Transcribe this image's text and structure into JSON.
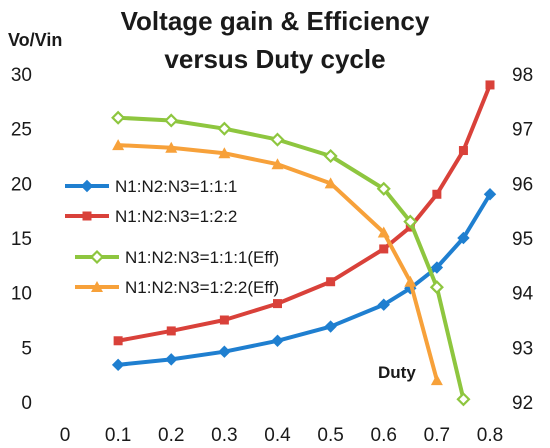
{
  "chart_data": {
    "type": "line",
    "title_lines": [
      "Voltage gain & Efficiency",
      "versus Duty cycle"
    ],
    "ylabel_left": "Vo/Vin",
    "annotation": "Duty",
    "x_ticks": [
      "0",
      "0.1",
      "0.2",
      "0.3",
      "0.4",
      "0.5",
      "0.6",
      "0.7",
      "0.8"
    ],
    "y_left_ticks": [
      "0",
      "5",
      "10",
      "15",
      "20",
      "25",
      "30"
    ],
    "y_right_ticks": [
      "92",
      "93",
      "94",
      "95",
      "96",
      "97",
      "98"
    ],
    "xlim": [
      0,
      0.8
    ],
    "ylim_left": [
      0,
      30
    ],
    "ylim_right": [
      92,
      98
    ],
    "legend_position": "left-center",
    "series": [
      {
        "name": "N1:N2:N3=1:1:1",
        "axis": "left",
        "color": "#1f7fd0",
        "marker": "diamond",
        "x": [
          0.1,
          0.2,
          0.3,
          0.4,
          0.5,
          0.6,
          0.65,
          0.7,
          0.75,
          0.8
        ],
        "y": [
          3.4,
          3.9,
          4.6,
          5.6,
          6.9,
          8.9,
          10.4,
          12.3,
          15.0,
          19.0
        ]
      },
      {
        "name": "N1:N2:N3=1:2:2",
        "axis": "left",
        "color": "#d9413a",
        "marker": "square",
        "x": [
          0.1,
          0.2,
          0.3,
          0.4,
          0.5,
          0.6,
          0.65,
          0.7,
          0.75,
          0.8
        ],
        "y": [
          5.6,
          6.5,
          7.5,
          9.0,
          11.0,
          14.0,
          16.0,
          19.0,
          23.0,
          29.0
        ]
      },
      {
        "name": "N1:N2:N3=1:1:1(Eff)",
        "axis": "right",
        "color": "#8ec63f",
        "marker": "diamond-open",
        "x": [
          0.1,
          0.2,
          0.3,
          0.4,
          0.5,
          0.6,
          0.65,
          0.7,
          0.75
        ],
        "y": [
          97.2,
          97.15,
          97.0,
          96.8,
          96.5,
          95.9,
          95.3,
          94.1,
          92.05
        ]
      },
      {
        "name": "N1:N2:N3=1:2:2(Eff)",
        "axis": "right",
        "color": "#f7a13a",
        "marker": "triangle",
        "x": [
          0.1,
          0.2,
          0.3,
          0.4,
          0.5,
          0.6,
          0.65,
          0.7
        ],
        "y": [
          96.7,
          96.65,
          96.55,
          96.35,
          96.0,
          95.1,
          94.2,
          92.4
        ]
      }
    ]
  }
}
